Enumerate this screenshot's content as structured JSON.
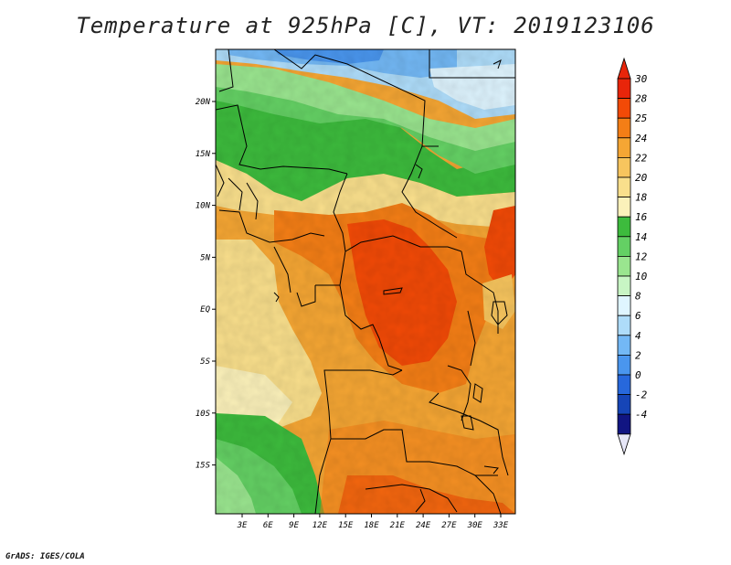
{
  "title": "Temperature at 925hPa [C], VT: 2019123106",
  "credit": "GrADS: IGES/COLA",
  "map": {
    "lat_labels": [
      "20N",
      "15N",
      "10N",
      "5N",
      "EQ",
      "5S",
      "10S",
      "15S"
    ],
    "lon_labels": [
      "3E",
      "6E",
      "9E",
      "12E",
      "15E",
      "18E",
      "21E",
      "24E",
      "27E",
      "30E",
      "33E"
    ]
  },
  "colorbar": {
    "labels": [
      "30",
      "28",
      "25",
      "24",
      "22",
      "20",
      "18",
      "16",
      "14",
      "12",
      "10",
      "8",
      "6",
      "4",
      "2",
      "0",
      "-2",
      "-4"
    ],
    "colors": [
      "#e8250a",
      "#f24a07",
      "#f47e16",
      "#f5a634",
      "#f7c55e",
      "#f9df8c",
      "#fbf1ba",
      "#3dbb3d",
      "#64d064",
      "#9ae58f",
      "#c8f5c4",
      "#dff5ff",
      "#aedcf9",
      "#73b8f5",
      "#4a96ee",
      "#2768dc",
      "#1645b7",
      "#111582"
    ]
  }
}
